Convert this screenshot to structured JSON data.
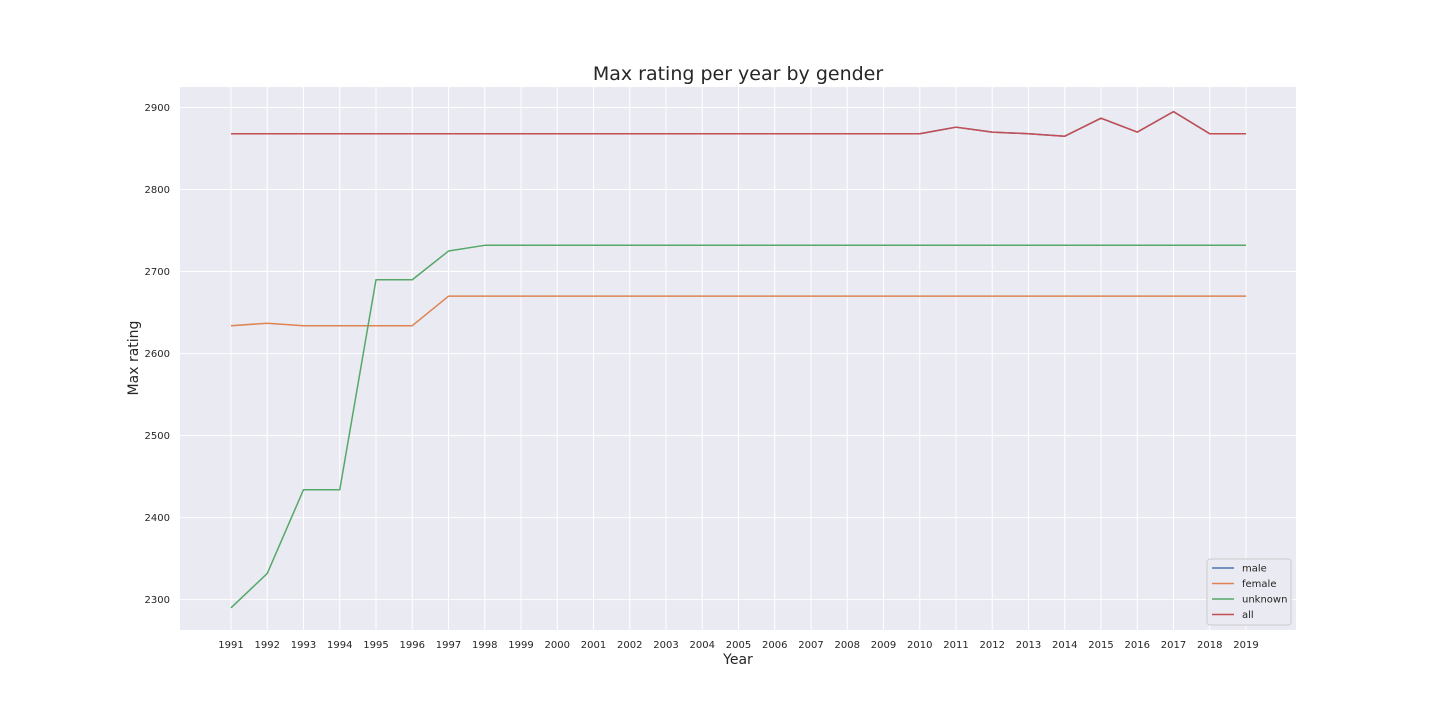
{
  "chart_data": {
    "type": "line",
    "title": "Max rating per year by gender",
    "xlabel": "Year",
    "ylabel": "Max rating",
    "x": [
      "1991",
      "1992",
      "1993",
      "1994",
      "1995",
      "1996",
      "1997",
      "1998",
      "1999",
      "2000",
      "2001",
      "2002",
      "2003",
      "2004",
      "2005",
      "2006",
      "2007",
      "2008",
      "2009",
      "2010",
      "2011",
      "2012",
      "2013",
      "2014",
      "2015",
      "2016",
      "2017",
      "2018",
      "2019"
    ],
    "yticks": [
      2300,
      2400,
      2500,
      2600,
      2700,
      2800,
      2900
    ],
    "ylim": [
      2263,
      2925
    ],
    "grid": true,
    "legend_position": "lower-right",
    "series": [
      {
        "name": "male",
        "color": "#4c72b0",
        "values": [
          2868,
          2868,
          2868,
          2868,
          2868,
          2868,
          2868,
          2868,
          2868,
          2868,
          2868,
          2868,
          2868,
          2868,
          2868,
          2868,
          2868,
          2868,
          2868,
          2868,
          2876,
          2870,
          2868,
          2865,
          2887,
          2870,
          2895,
          2868,
          2868
        ]
      },
      {
        "name": "female",
        "color": "#dd8452",
        "values": [
          2634,
          2637,
          2634,
          2634,
          2634,
          2634,
          2670,
          2670,
          2670,
          2670,
          2670,
          2670,
          2670,
          2670,
          2670,
          2670,
          2670,
          2670,
          2670,
          2670,
          2670,
          2670,
          2670,
          2670,
          2670,
          2670,
          2670,
          2670,
          2670
        ]
      },
      {
        "name": "unknown",
        "color": "#55a868",
        "values": [
          2290,
          2332,
          2434,
          2434,
          2690,
          2690,
          2725,
          2732,
          2732,
          2732,
          2732,
          2732,
          2732,
          2732,
          2732,
          2732,
          2732,
          2732,
          2732,
          2732,
          2732,
          2732,
          2732,
          2732,
          2732,
          2732,
          2732,
          2732,
          2732
        ]
      },
      {
        "name": "all",
        "color": "#c44e52",
        "values": [
          2868,
          2868,
          2868,
          2868,
          2868,
          2868,
          2868,
          2868,
          2868,
          2868,
          2868,
          2868,
          2868,
          2868,
          2868,
          2868,
          2868,
          2868,
          2868,
          2868,
          2876,
          2870,
          2868,
          2865,
          2887,
          2870,
          2895,
          2868,
          2868
        ]
      }
    ]
  }
}
